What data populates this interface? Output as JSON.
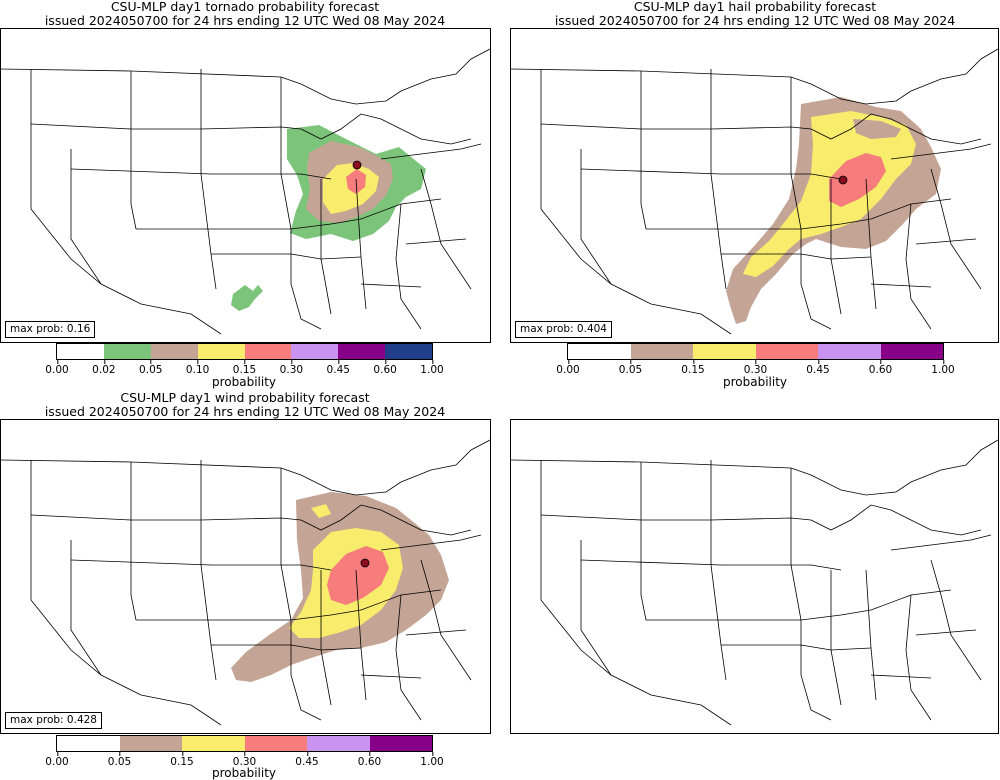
{
  "panels": [
    {
      "id": "tornado",
      "title1": "CSU-MLP day1 tornado probability forecast",
      "title2": "issued 2024050700 for 24 hrs ending 12 UTC Wed 08 May 2024",
      "max_prob_label": "max prob: 0.16",
      "colorbar": {
        "label": "probability",
        "ticks": [
          "0.00",
          "0.02",
          "0.05",
          "0.10",
          "0.15",
          "0.30",
          "0.45",
          "0.60",
          "1.00"
        ],
        "colors": [
          "#ffffff",
          "#7cc47a",
          "#c4a494",
          "#f7ec6c",
          "#f77c7c",
          "#c894f0",
          "#880088",
          "#1f3f8a"
        ]
      }
    },
    {
      "id": "hail",
      "title1": "CSU-MLP day1 hail probability forecast",
      "title2": "issued 2024050700 for 24 hrs ending 12 UTC Wed 08 May 2024",
      "max_prob_label": "max prob: 0.404",
      "colorbar": {
        "label": "probability",
        "ticks": [
          "0.00",
          "0.05",
          "0.15",
          "0.30",
          "0.45",
          "0.60",
          "1.00"
        ],
        "colors": [
          "#ffffff",
          "#c4a494",
          "#f7ec6c",
          "#f77c7c",
          "#c894f0",
          "#880088"
        ]
      }
    },
    {
      "id": "wind",
      "title1": "CSU-MLP day1 wind probability forecast",
      "title2": "issued 2024050700 for 24 hrs ending 12 UTC Wed 08 May 2024",
      "max_prob_label": "max prob: 0.428",
      "colorbar": {
        "label": "probability",
        "ticks": [
          "0.00",
          "0.05",
          "0.15",
          "0.30",
          "0.45",
          "0.60",
          "1.00"
        ],
        "colors": [
          "#ffffff",
          "#c4a494",
          "#f7ec6c",
          "#f77c7c",
          "#c894f0",
          "#880088"
        ]
      }
    },
    {
      "id": "blank"
    }
  ]
}
